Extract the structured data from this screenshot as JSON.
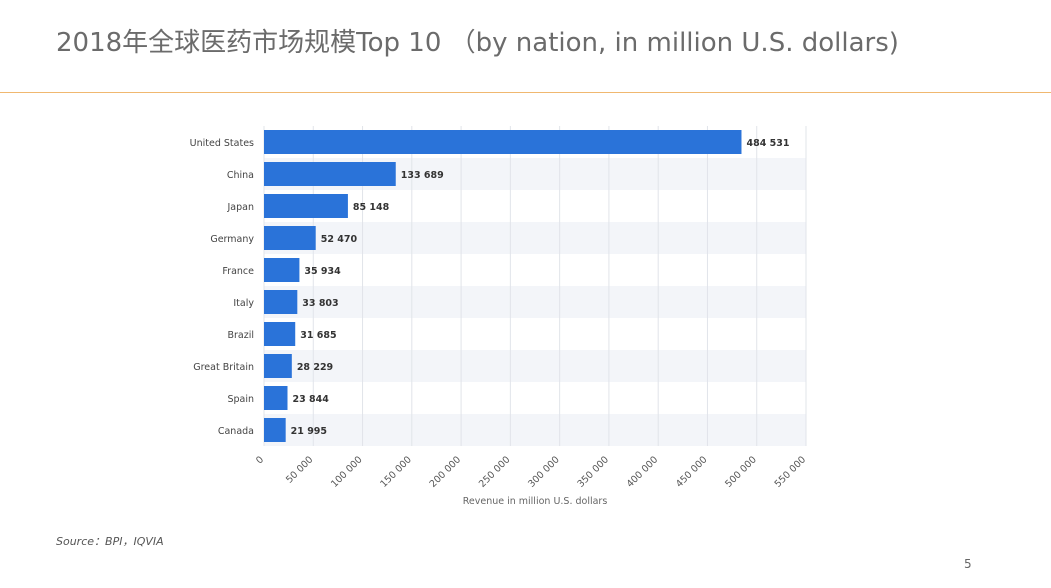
{
  "slide": {
    "title": "2018年全球医药市场规模Top 10 （by nation, in million U.S. dollars)",
    "source": "Source：BPI，IQVIA",
    "page_number": "5"
  },
  "chart_data": {
    "type": "bar",
    "orientation": "horizontal",
    "categories": [
      "United States",
      "China",
      "Japan",
      "Germany",
      "France",
      "Italy",
      "Brazil",
      "Great Britain",
      "Spain",
      "Canada"
    ],
    "values": [
      484531,
      133689,
      85148,
      52470,
      35934,
      33803,
      31685,
      28229,
      23844,
      21995
    ],
    "value_labels": [
      "484 531",
      "133 689",
      "85 148",
      "52 470",
      "35 934",
      "33 803",
      "31 685",
      "28 229",
      "23 844",
      "21 995"
    ],
    "xlabel": "Revenue in million U.S. dollars",
    "ylabel": "",
    "xlim": [
      0,
      550000
    ],
    "xticks": [
      0,
      50000,
      100000,
      150000,
      200000,
      250000,
      300000,
      350000,
      400000,
      450000,
      500000,
      550000
    ],
    "xtick_labels": [
      "0",
      "50 000",
      "100 000",
      "150 000",
      "200 000",
      "250 000",
      "300 000",
      "350 000",
      "400 000",
      "450 000",
      "500 000",
      "550 000"
    ],
    "grid": true,
    "bar_color": "#2a73d9",
    "stripe_color": "#f3f5f9"
  }
}
